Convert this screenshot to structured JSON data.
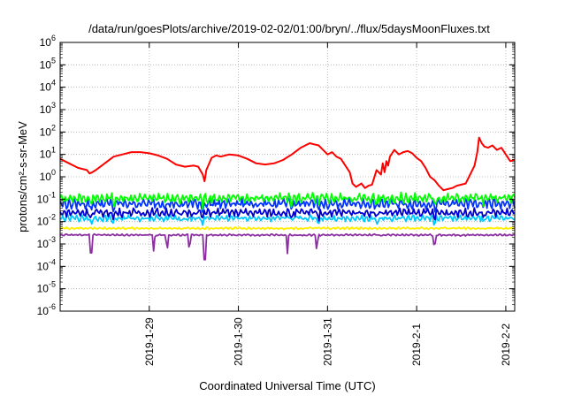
{
  "chart_data": {
    "type": "line",
    "title": "/data/run/goesPlots/archive/2019-02-02/01:00/bryn/../flux/5daysMoonFluxes.txt",
    "xlabel": "Coordinated Universal Time (UTC)",
    "ylabel": "protons/cm²-s-sr-MeV",
    "yscale": "log",
    "ylim_exponent": [
      -6,
      6
    ],
    "ytick_labels": [
      "10-6",
      "10-5",
      "10-4",
      "10-3",
      "10-2",
      "10-1",
      "100",
      "101",
      "102",
      "103",
      "104",
      "105",
      "106"
    ],
    "xtick_labels": [
      "2019-1-29",
      "2019-1-30",
      "2019-1-31",
      "2019-2-1",
      "2019-2-2"
    ],
    "x_units": "days since 2019-01-28",
    "xlim": [
      0,
      5.1
    ],
    "xtick_values": [
      1,
      2,
      3,
      4,
      5
    ],
    "grid": true,
    "series": [
      {
        "color": "#ff0000",
        "points": [
          [
            0.0,
            0.8
          ],
          [
            0.1,
            0.6
          ],
          [
            0.2,
            0.4
          ],
          [
            0.3,
            0.3
          ],
          [
            0.33,
            0.15
          ],
          [
            0.36,
            0.2
          ],
          [
            0.4,
            0.3
          ],
          [
            0.5,
            0.6
          ],
          [
            0.6,
            0.9
          ],
          [
            0.7,
            1.0
          ],
          [
            0.8,
            1.1
          ],
          [
            0.9,
            1.1
          ],
          [
            1.0,
            1.05
          ],
          [
            1.1,
            0.95
          ],
          [
            1.2,
            0.8
          ],
          [
            1.3,
            0.55
          ],
          [
            1.4,
            0.45
          ],
          [
            1.5,
            0.5
          ],
          [
            1.55,
            0.45
          ],
          [
            1.6,
            0.1
          ],
          [
            1.62,
            -0.2
          ],
          [
            1.64,
            0.3
          ],
          [
            1.7,
            0.85
          ],
          [
            1.75,
            0.95
          ],
          [
            1.8,
            0.9
          ],
          [
            1.9,
            1.0
          ],
          [
            2.0,
            0.95
          ],
          [
            2.1,
            0.8
          ],
          [
            2.2,
            0.6
          ],
          [
            2.3,
            0.55
          ],
          [
            2.4,
            0.6
          ],
          [
            2.5,
            0.75
          ],
          [
            2.6,
            1.0
          ],
          [
            2.7,
            1.3
          ],
          [
            2.8,
            1.5
          ],
          [
            2.85,
            1.45
          ],
          [
            2.9,
            1.4
          ],
          [
            2.95,
            1.2
          ],
          [
            3.0,
            1.0
          ],
          [
            3.05,
            1.1
          ],
          [
            3.1,
            0.9
          ],
          [
            3.15,
            0.8
          ],
          [
            3.2,
            0.5
          ],
          [
            3.25,
            0.2
          ],
          [
            3.28,
            -0.3
          ],
          [
            3.32,
            -0.45
          ],
          [
            3.38,
            -0.3
          ],
          [
            3.42,
            -0.5
          ],
          [
            3.46,
            -0.4
          ],
          [
            3.5,
            -0.35
          ],
          [
            3.55,
            0.3
          ],
          [
            3.6,
            0.1
          ],
          [
            3.62,
            0.6
          ],
          [
            3.64,
            0.2
          ],
          [
            3.66,
            0.7
          ],
          [
            3.68,
            0.5
          ],
          [
            3.7,
            0.9
          ],
          [
            3.75,
            1.2
          ],
          [
            3.8,
            1.0
          ],
          [
            3.85,
            1.1
          ],
          [
            3.9,
            1.15
          ],
          [
            3.95,
            1.05
          ],
          [
            4.0,
            0.85
          ],
          [
            4.05,
            0.7
          ],
          [
            4.1,
            0.4
          ],
          [
            4.15,
            0.0
          ],
          [
            4.2,
            -0.15
          ],
          [
            4.25,
            -0.4
          ],
          [
            4.3,
            -0.6
          ],
          [
            4.35,
            -0.55
          ],
          [
            4.4,
            -0.5
          ],
          [
            4.45,
            -0.4
          ],
          [
            4.5,
            -0.35
          ],
          [
            4.55,
            -0.3
          ],
          [
            4.6,
            0.1
          ],
          [
            4.65,
            0.5
          ],
          [
            4.68,
            1.1
          ],
          [
            4.7,
            1.75
          ],
          [
            4.73,
            1.5
          ],
          [
            4.76,
            1.35
          ],
          [
            4.8,
            1.3
          ],
          [
            4.85,
            1.4
          ],
          [
            4.9,
            1.2
          ],
          [
            4.95,
            1.3
          ],
          [
            5.0,
            1.0
          ],
          [
            5.05,
            0.7
          ],
          [
            5.1,
            0.75
          ]
        ]
      },
      {
        "color": "#00ff00",
        "base": -0.95,
        "amp": 0.22,
        "dips": [
          0.35,
          0.6,
          1.35,
          1.6,
          2.6,
          2.9,
          3.55,
          4.2,
          4.75
        ]
      },
      {
        "color": "#0033ff",
        "base": -1.2,
        "amp": 0.22,
        "dips": [
          0.35,
          0.6,
          1.35,
          1.6,
          2.6,
          2.9,
          3.55,
          4.2,
          4.75
        ]
      },
      {
        "color": "#0000cc",
        "base": -1.6,
        "amp": 0.18,
        "dips": [
          0.35,
          0.6,
          1.35,
          1.6,
          2.6,
          2.9,
          3.55,
          4.2,
          4.75
        ]
      },
      {
        "color": "#00c8ff",
        "base": -1.85,
        "amp": 0.14,
        "dips": [
          0.35,
          0.6,
          1.35,
          1.6,
          2.6,
          2.9,
          3.55,
          4.2,
          4.75
        ]
      },
      {
        "color": "#ffee00",
        "base": -2.3,
        "amp": 0.05,
        "dips": []
      },
      {
        "color": "#8b2fa0",
        "base": -2.6,
        "amp": 0.04,
        "dips": [
          0.35,
          1.05,
          1.2,
          1.45,
          1.62,
          2.55,
          2.88,
          4.2
        ]
      }
    ]
  }
}
